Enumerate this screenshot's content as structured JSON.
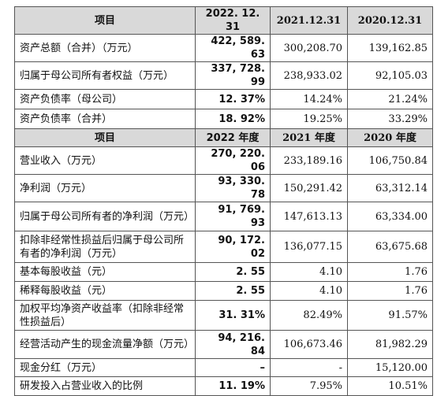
{
  "table": {
    "sections": [
      {
        "header": [
          "项目",
          "2022. 12. 31",
          "2021.12.31",
          "2020.12.31"
        ],
        "rows": [
          [
            "资产总额（合并）（万元）",
            "422, 589. 63",
            "300,208.70",
            "139,162.85"
          ],
          [
            "归属于母公司所有者权益（万元）",
            "337, 728. 99",
            "238,933.02",
            "92,105.03"
          ],
          [
            "资产负债率（母公司）",
            "12. 37%",
            "14.24%",
            "21.24%"
          ],
          [
            "资产负债率（合并）",
            "18. 92%",
            "19.25%",
            "33.29%"
          ]
        ]
      },
      {
        "header": [
          "项目",
          "2022 年度",
          "2021 年度",
          "2020 年度"
        ],
        "rows": [
          [
            "营业收入（万元）",
            "270, 220. 06",
            "233,189.16",
            "106,750.84"
          ],
          [
            "净利润（万元）",
            "93, 330. 78",
            "150,291.42",
            "63,312.14"
          ],
          [
            "归属于母公司所有者的净利润（万元）",
            "91, 769. 93",
            "147,613.13",
            "63,334.00"
          ],
          [
            "扣除非经常性损益后归属于母公司所有者的净利润（万元）",
            "90, 172. 02",
            "136,077.15",
            "63,675.68"
          ],
          [
            "基本每股收益（元）",
            "2. 55",
            "4.10",
            "1.76"
          ],
          [
            "稀释每股收益（元）",
            "2. 55",
            "4.10",
            "1.76"
          ],
          [
            "加权平均净资产收益率（扣除非经常性损益后）",
            "31. 31%",
            "82.49%",
            "91.57%"
          ],
          [
            "经营活动产生的现金流量净额（万元）",
            "94, 216. 84",
            "106,673.46",
            "81,982.29"
          ],
          [
            "现金分红（万元）",
            "–",
            "-",
            "15,120.00"
          ],
          [
            "研发投入占营业收入的比例",
            "11. 19%",
            "7.95%",
            "10.51%"
          ]
        ]
      }
    ]
  }
}
